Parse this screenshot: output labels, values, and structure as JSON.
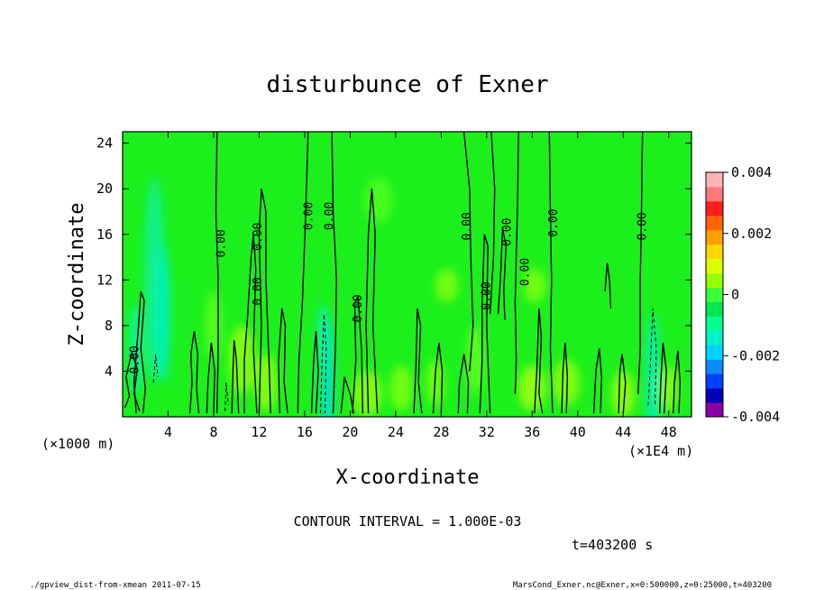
{
  "chart_data": {
    "type": "heatmap",
    "title": "disturbunce of Exner",
    "xlabel": "X-coordinate",
    "ylabel": "Z-coordinate",
    "x_unit": "(×1E4 m)",
    "y_unit": "(×1000 m)",
    "xlim": [
      0,
      50
    ],
    "ylim": [
      0,
      25
    ],
    "x_ticks": [
      4,
      8,
      12,
      16,
      20,
      24,
      28,
      32,
      36,
      40,
      44,
      48
    ],
    "y_ticks": [
      4,
      8,
      12,
      16,
      20,
      24
    ],
    "colorbar": {
      "range": [
        -0.004,
        0.004
      ],
      "tick_labels": [
        "0.004",
        "0.002",
        "0",
        "-0.002",
        "-0.004"
      ],
      "colors": [
        "#8a00a8",
        "#0000b4",
        "#0040ff",
        "#0a8cff",
        "#00d2ff",
        "#00f0c8",
        "#00ff90",
        "#00e650",
        "#3cff3c",
        "#96ff00",
        "#dcff00",
        "#ffd700",
        "#ffa000",
        "#ff6400",
        "#ff1e1e",
        "#ff7878",
        "#ffb4b4"
      ]
    },
    "contour_interval": "CONTOUR INTERVAL = 1.000E-03",
    "contour_labels": [
      {
        "text": "0.00",
        "x": 1.0,
        "y": 5.0
      },
      {
        "text": "0.00",
        "x": 8.6,
        "y": 15.2
      },
      {
        "text": "0.00",
        "x": 11.8,
        "y": 15.8
      },
      {
        "text": "0.00",
        "x": 11.8,
        "y": 11.0
      },
      {
        "text": "0.00",
        "x": 16.3,
        "y": 17.6
      },
      {
        "text": "0.00",
        "x": 18.1,
        "y": 17.6
      },
      {
        "text": "0.00",
        "x": 20.6,
        "y": 9.5
      },
      {
        "text": "0.00",
        "x": 30.2,
        "y": 16.7
      },
      {
        "text": "0.00",
        "x": 31.9,
        "y": 10.6
      },
      {
        "text": "0.00",
        "x": 33.7,
        "y": 16.2
      },
      {
        "text": "0.00",
        "x": 35.3,
        "y": 12.7
      },
      {
        "text": "0.00",
        "x": 37.8,
        "y": 17.0
      },
      {
        "text": "0.00",
        "x": 45.6,
        "y": 16.7
      }
    ],
    "time_label": "t=403200 s"
  },
  "footer": {
    "left": "./gpview_dist-from-xmean  2011-07-15",
    "right": "MarsCond_Exner.nc@Exner,x=0:500000,z=0:25000,t=403200"
  }
}
